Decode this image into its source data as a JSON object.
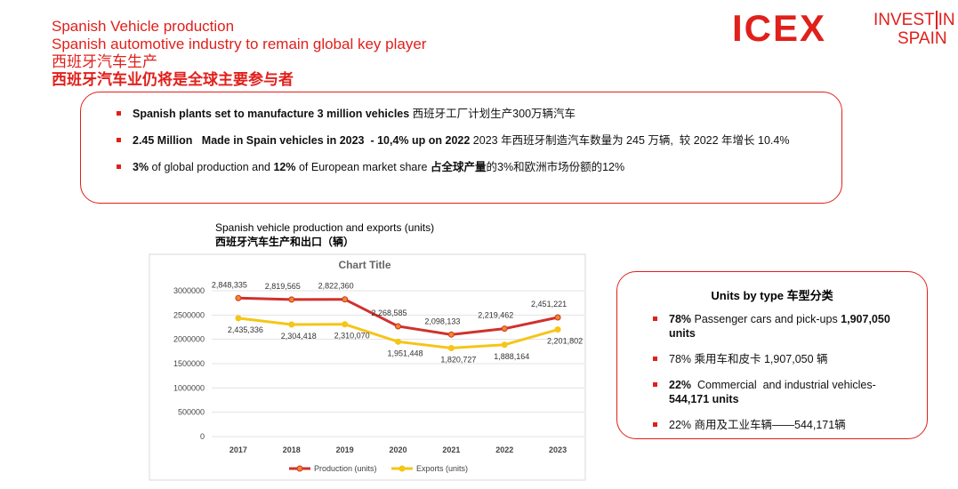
{
  "header": {
    "title_en": "Spanish Vehicle production",
    "subtitle_en": "Spanish automotive industry to remain global key player",
    "title_zh": "西班牙汽车生产",
    "subtitle_zh": "西班牙汽车业仍将是全球主要参与者"
  },
  "logos": {
    "icex": "ICEX",
    "invest": "INVEST",
    "in": "IN",
    "spain": "SPAIN"
  },
  "highlights": [
    [
      {
        "text": "Spanish plants set to manufacture 3 million vehicles",
        "bold": true
      },
      {
        "text": " 西班牙工厂计划生产300万辆汽车",
        "bold": false
      }
    ],
    [
      {
        "text": "2.45 Million   Made in Spain vehicles in 2023  - 10,4% up on 2022",
        "bold": true
      },
      {
        "text": " 2023 年西班牙制造汽车数量为 245 万辆,  较 2022 年增长 10.4%",
        "bold": false
      }
    ],
    [
      {
        "text": "3%",
        "bold": true
      },
      {
        "text": " of global production and ",
        "bold": false
      },
      {
        "text": "12%",
        "bold": true
      },
      {
        "text": " of European market share ",
        "bold": false
      },
      {
        "text": "占全球产量",
        "bold": true
      },
      {
        "text": "的3%和欧洲市场份额的12%",
        "bold": false
      }
    ]
  ],
  "units_box": {
    "title": "Units by type 车型分类",
    "items": [
      [
        {
          "text": "78%",
          "bold": true
        },
        {
          "text": " Passenger cars and pick-ups ",
          "bold": false
        },
        {
          "text": "1,907,050 units",
          "bold": true
        }
      ],
      [
        {
          "text": "78% 乘用车和皮卡 1,907,050 辆",
          "bold": false
        }
      ],
      [
        {
          "text": "22%",
          "bold": true
        },
        {
          "text": "  Commercial  and industrial vehicles-",
          "bold": false
        },
        {
          "text": "544,171 units",
          "bold": true
        }
      ],
      [
        {
          "text": "22% 商用及工业车辆——544,171辆",
          "bold": false
        }
      ]
    ]
  },
  "chart_data": {
    "type": "line",
    "title": "Spanish vehicle production and exports (units)",
    "subtitle": "西班牙汽车生产和出口（辆）",
    "inner_title": "Chart Title",
    "categories": [
      "2017",
      "2018",
      "2019",
      "2020",
      "2021",
      "2022",
      "2023"
    ],
    "series": [
      {
        "name": "Production (units)",
        "color": "#d0312d",
        "marker_color": "#f08a24",
        "values": [
          2848335,
          2819565,
          2822360,
          2268585,
          2098133,
          2219462,
          2451221
        ],
        "value_labels": [
          "2,848,335",
          "2,819,565",
          "2,822,360",
          "2,268,585",
          "2,098,133",
          "2,219,462",
          "2,451,221"
        ]
      },
      {
        "name": "Exports (units)",
        "color": "#f5c518",
        "marker_color": "#f5c518",
        "values": [
          2435336,
          2304418,
          2310070,
          1951448,
          1820727,
          1888164,
          2201802
        ],
        "value_labels": [
          "2,435,336",
          "2,304,418",
          "2,310,070",
          "1,951,448",
          "1,820,727",
          "1,888,164",
          "2,201,802"
        ]
      }
    ],
    "ylim": [
      0,
      3000000
    ],
    "yticks": [
      0,
      500000,
      1000000,
      1500000,
      2000000,
      2500000,
      3000000
    ],
    "grid": true
  }
}
